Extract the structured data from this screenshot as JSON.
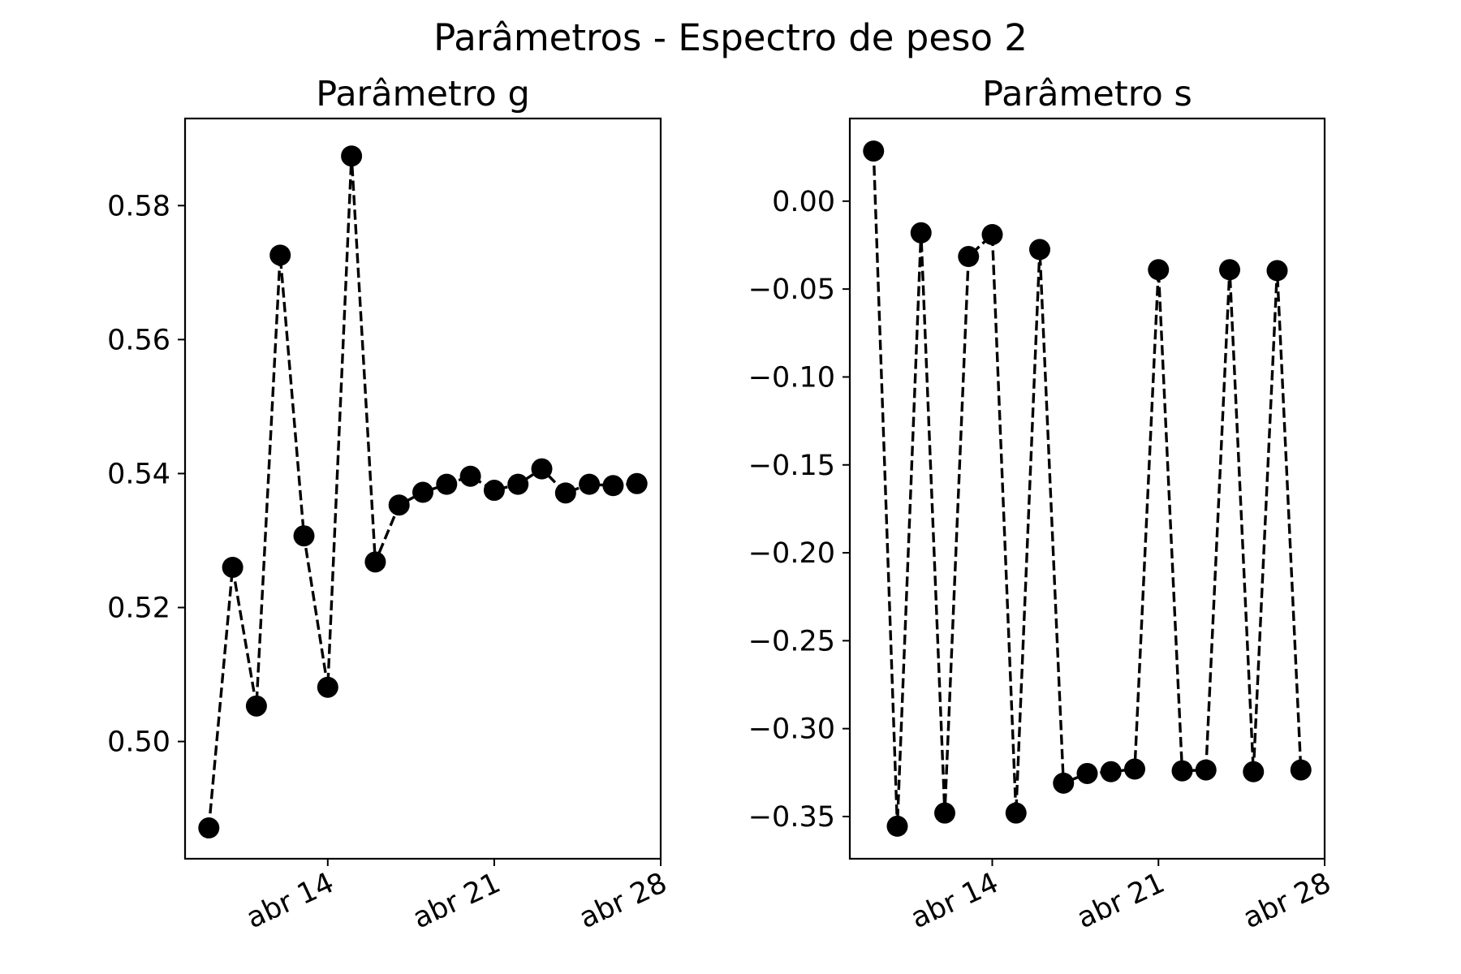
{
  "figure": {
    "suptitle": "Parâmetros - Espectro de peso 2"
  },
  "chart_data": [
    {
      "type": "line",
      "title": "Parâmetro g",
      "xlabel": "",
      "ylabel": "",
      "x_axis": "date",
      "x": [
        "2024-04-09",
        "2024-04-10",
        "2024-04-11",
        "2024-04-12",
        "2024-04-13",
        "2024-04-14",
        "2024-04-15",
        "2024-04-16",
        "2024-04-17",
        "2024-04-18",
        "2024-04-19",
        "2024-04-20",
        "2024-04-21",
        "2024-04-22",
        "2024-04-23",
        "2024-04-24",
        "2024-04-25",
        "2024-04-26",
        "2024-04-27"
      ],
      "series": [
        {
          "values": [
            0.4871,
            0.526,
            0.5053,
            0.5726,
            0.5307,
            0.5081,
            0.5874,
            0.5268,
            0.5353,
            0.5372,
            0.5384,
            0.5396,
            0.5375,
            0.5384,
            0.5407,
            0.5371,
            0.5384,
            0.5382,
            0.5385
          ]
        }
      ],
      "xlim": [
        "2024-04-08",
        "2024-04-28"
      ],
      "ylim": [
        0.4825,
        0.593
      ],
      "x_ticks": [
        "2024-04-14",
        "2024-04-21",
        "2024-04-28"
      ],
      "x_tick_labels": [
        "abr 14",
        "abr 21",
        "abr 28"
      ],
      "y_ticks": [
        0.5,
        0.52,
        0.54,
        0.56,
        0.58
      ],
      "y_tick_labels": [
        "0.50",
        "0.52",
        "0.54",
        "0.56",
        "0.58"
      ],
      "grid": false,
      "legend": "none",
      "style": {
        "line": "dashed",
        "marker": "circle",
        "color": "#000000"
      }
    },
    {
      "type": "line",
      "title": "Parâmetro s",
      "xlabel": "",
      "ylabel": "",
      "x_axis": "date",
      "x": [
        "2024-04-09",
        "2024-04-10",
        "2024-04-11",
        "2024-04-12",
        "2024-04-13",
        "2024-04-14",
        "2024-04-15",
        "2024-04-16",
        "2024-04-17",
        "2024-04-18",
        "2024-04-19",
        "2024-04-20",
        "2024-04-21",
        "2024-04-22",
        "2024-04-23",
        "2024-04-24",
        "2024-04-25",
        "2024-04-26",
        "2024-04-27"
      ],
      "series": [
        {
          "values": [
            0.0285,
            -0.3555,
            -0.018,
            -0.348,
            -0.0315,
            -0.019,
            -0.348,
            -0.0275,
            -0.331,
            -0.3255,
            -0.3245,
            -0.323,
            -0.039,
            -0.324,
            -0.3235,
            -0.039,
            -0.3245,
            -0.0395,
            -0.3235
          ]
        }
      ],
      "xlim": [
        "2024-04-08",
        "2024-04-28"
      ],
      "ylim": [
        -0.374,
        0.047
      ],
      "x_ticks": [
        "2024-04-14",
        "2024-04-21",
        "2024-04-28"
      ],
      "x_tick_labels": [
        "abr 14",
        "abr 21",
        "abr 28"
      ],
      "y_ticks": [
        0.0,
        -0.05,
        -0.1,
        -0.15,
        -0.2,
        -0.25,
        -0.3,
        -0.35
      ],
      "y_tick_labels": [
        "0.00",
        "−0.05",
        "−0.10",
        "−0.15",
        "−0.20",
        "−0.25",
        "−0.30",
        "−0.35"
      ],
      "grid": false,
      "legend": "none",
      "style": {
        "line": "dashed",
        "marker": "circle",
        "color": "#000000"
      }
    }
  ]
}
